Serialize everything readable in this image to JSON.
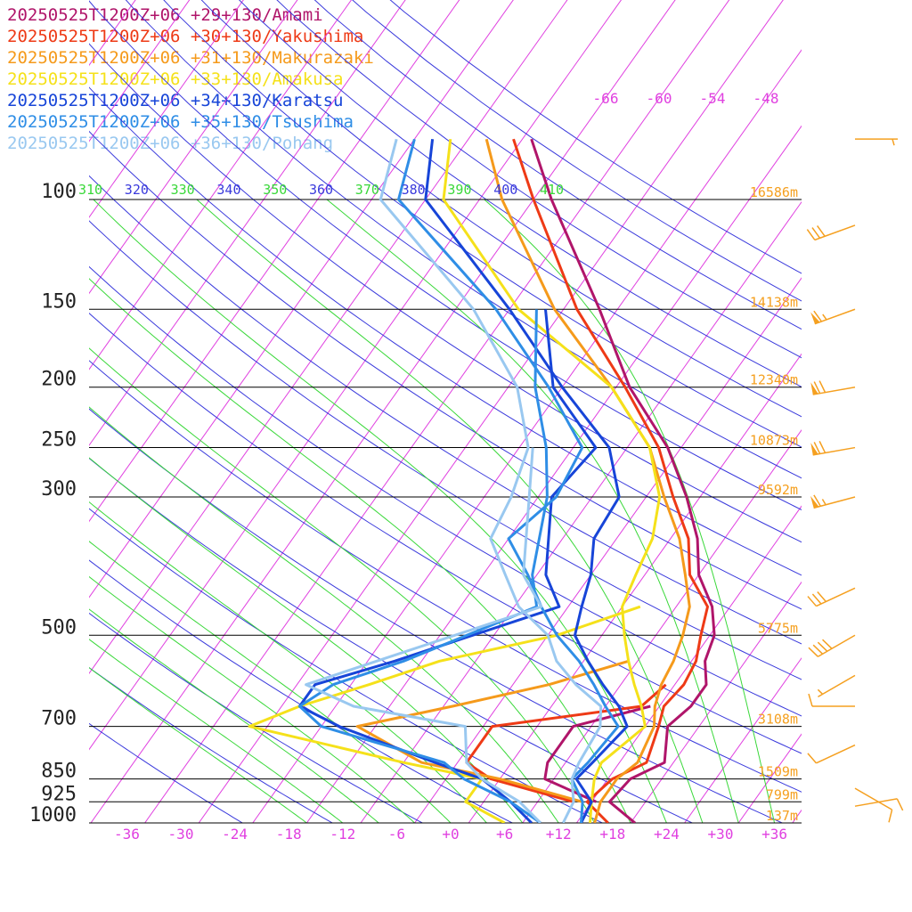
{
  "chart_data": {
    "type": "line",
    "chart_kind": "skew-t log-p sounding",
    "legend": [
      {
        "label": "20250525T1200Z+06 +29+130/Amami",
        "color": "#b0156a"
      },
      {
        "label": "20250525T1200Z+06 +30+130/Yakushima",
        "color": "#ee3a16"
      },
      {
        "label": "20250525T1200Z+06 +31+130/Makurazaki",
        "color": "#f59a1b"
      },
      {
        "label": "20250525T1200Z+06 +33+130/Amakusa",
        "color": "#f5e11a"
      },
      {
        "label": "20250525T1200Z+06 +34+130/Karatsu",
        "color": "#1745d8"
      },
      {
        "label": "20250525T1200Z+06 +35+130/Tsushima",
        "color": "#2f8ee6"
      },
      {
        "label": "20250525T1200Z+06 +36+130/Pohang",
        "color": "#99c8f0"
      }
    ],
    "pressure_levels": [
      {
        "p": 100,
        "label": "100",
        "height": "16586m"
      },
      {
        "p": 150,
        "label": "150",
        "height": "14138m"
      },
      {
        "p": 200,
        "label": "200",
        "height": "12340m"
      },
      {
        "p": 250,
        "label": "250",
        "height": "10873m"
      },
      {
        "p": 300,
        "label": "300",
        "height": "9592m"
      },
      {
        "p": 500,
        "label": "500",
        "height": "5775m"
      },
      {
        "p": 700,
        "label": "700",
        "height": "3108m"
      },
      {
        "p": 850,
        "label": "850",
        "height": "1509m"
      },
      {
        "p": 925,
        "label": "925",
        "height": "799m"
      },
      {
        "p": 1000,
        "label": "1000",
        "height": "137m"
      }
    ],
    "temperature_ticks": [
      "-36",
      "-30",
      "-24",
      "-18",
      "-12",
      "-6",
      "+0",
      "+6",
      "+12",
      "+18",
      "+24",
      "+30",
      "+36"
    ],
    "temperature_tick_values": [
      -36,
      -30,
      -24,
      -18,
      -12,
      -6,
      0,
      6,
      12,
      18,
      24,
      30,
      36
    ],
    "upper_temperature_ticks": [
      "-66",
      "-60",
      "-54",
      "-48"
    ],
    "theta_labels": [
      "310",
      "320",
      "330",
      "340",
      "350",
      "360",
      "370",
      "380",
      "390",
      "400",
      "410"
    ],
    "xlim": [
      -40,
      40
    ],
    "ylim": [
      1000,
      100
    ],
    "series": [
      {
        "name": "20250525T1200Z+06 +29+130/Amami",
        "color": "#b0156a",
        "temperature": [
          [
            1000,
            20.5
          ],
          [
            925,
            16.0
          ],
          [
            850,
            16.5
          ],
          [
            800,
            19.0
          ],
          [
            700,
            16.5
          ],
          [
            650,
            17.5
          ],
          [
            600,
            17.5
          ],
          [
            550,
            15.5
          ],
          [
            500,
            14.5
          ],
          [
            450,
            12.0
          ],
          [
            400,
            8.0
          ],
          [
            350,
            5.0
          ],
          [
            300,
            0.5
          ],
          [
            250,
            -5.5
          ],
          [
            200,
            -14.5
          ],
          [
            150,
            -24.0
          ],
          [
            100,
            -38.0
          ],
          [
            80,
            -45.0
          ]
        ],
        "dewpoint": [
          [
            925,
            14.5
          ],
          [
            850,
            7.0
          ],
          [
            800,
            6.0
          ],
          [
            700,
            6.0
          ],
          [
            650,
            13.0
          ]
        ]
      },
      {
        "name": "20250525T1200Z+06 +30+130/Yakushima",
        "color": "#ee3a16",
        "temperature": [
          [
            1000,
            17.5
          ],
          [
            925,
            13.5
          ],
          [
            850,
            14.5
          ],
          [
            800,
            17.0
          ],
          [
            700,
            15.5
          ],
          [
            650,
            14.5
          ],
          [
            600,
            15.0
          ],
          [
            550,
            14.5
          ],
          [
            500,
            13.0
          ],
          [
            450,
            11.5
          ],
          [
            400,
            7.0
          ],
          [
            350,
            4.0
          ],
          [
            300,
            -1.0
          ],
          [
            250,
            -6.5
          ],
          [
            200,
            -15.0
          ],
          [
            150,
            -26.5
          ],
          [
            100,
            -40.0
          ],
          [
            80,
            -47.0
          ]
        ],
        "dewpoint": [
          [
            925,
            12.0
          ],
          [
            850,
            1.0
          ],
          [
            800,
            -3.0
          ],
          [
            700,
            -3.0
          ],
          [
            650,
            12.0
          ],
          [
            600,
            13.0
          ]
        ]
      },
      {
        "name": "20250525T1200Z+06 +31+130/Makurazaki",
        "color": "#f59a1b",
        "temperature": [
          [
            1000,
            16.0
          ],
          [
            925,
            15.0
          ],
          [
            850,
            15.0
          ],
          [
            800,
            16.0
          ],
          [
            700,
            15.0
          ],
          [
            650,
            13.5
          ],
          [
            600,
            12.5
          ],
          [
            550,
            12.0
          ],
          [
            500,
            11.0
          ],
          [
            450,
            9.5
          ],
          [
            400,
            6.5
          ],
          [
            350,
            3.0
          ],
          [
            300,
            -2.0
          ],
          [
            250,
            -7.5
          ],
          [
            200,
            -16.5
          ],
          [
            150,
            -29.0
          ],
          [
            100,
            -43.5
          ],
          [
            80,
            -50.0
          ]
        ],
        "dewpoint": [
          [
            925,
            13.0
          ],
          [
            850,
            2.0
          ],
          [
            800,
            -8.0
          ],
          [
            700,
            -18.0
          ],
          [
            650,
            -9.0
          ],
          [
            600,
            0.0
          ],
          [
            550,
            7.0
          ]
        ]
      },
      {
        "name": "20250525T1200Z+06 +33+130/Amakusa",
        "color": "#f5e11a",
        "temperature": [
          [
            1000,
            15.5
          ],
          [
            925,
            14.0
          ],
          [
            850,
            12.5
          ],
          [
            800,
            12.0
          ],
          [
            700,
            14.0
          ],
          [
            650,
            12.0
          ],
          [
            600,
            9.5
          ],
          [
            550,
            7.0
          ],
          [
            500,
            4.5
          ],
          [
            450,
            2.0
          ],
          [
            400,
            1.0
          ],
          [
            350,
            0.0
          ],
          [
            300,
            -2.5
          ],
          [
            250,
            -7.5
          ],
          [
            200,
            -16.5
          ],
          [
            150,
            -33.0
          ],
          [
            100,
            -50.0
          ],
          [
            80,
            -54.0
          ]
        ],
        "dewpoint": [
          [
            1000,
            6.0
          ],
          [
            925,
            0.0
          ],
          [
            850,
            0.0
          ],
          [
            800,
            -10.0
          ],
          [
            700,
            -30.0
          ],
          [
            650,
            -26.0
          ],
          [
            600,
            -20.0
          ],
          [
            550,
            -14.0
          ],
          [
            500,
            -3.0
          ],
          [
            450,
            4.0
          ]
        ]
      },
      {
        "name": "20250525T1200Z+06 +34+130/Karatsu",
        "color": "#1745d8",
        "temperature": [
          [
            1000,
            14.5
          ],
          [
            925,
            14.0
          ],
          [
            850,
            10.5
          ],
          [
            800,
            11.0
          ],
          [
            700,
            12.0
          ],
          [
            650,
            9.5
          ],
          [
            600,
            6.0
          ],
          [
            550,
            2.5
          ],
          [
            500,
            -1.0
          ],
          [
            450,
            -2.5
          ],
          [
            400,
            -4.0
          ],
          [
            350,
            -6.5
          ],
          [
            300,
            -7.0
          ],
          [
            250,
            -12.0
          ],
          [
            200,
            -22.0
          ],
          [
            150,
            -34.0
          ],
          [
            100,
            -52.0
          ],
          [
            80,
            -56.0
          ]
        ],
        "dewpoint": [
          [
            1000,
            9.0
          ],
          [
            925,
            5.0
          ],
          [
            850,
            0.0
          ],
          [
            800,
            -6.5
          ],
          [
            700,
            -20.0
          ],
          [
            650,
            -26.0
          ],
          [
            600,
            -26.0
          ],
          [
            550,
            -19.0
          ],
          [
            450,
            -5.0
          ],
          [
            400,
            -9.0
          ],
          [
            300,
            -14.5
          ],
          [
            250,
            -13.5
          ],
          [
            200,
            -23.0
          ],
          [
            150,
            -30.0
          ]
        ]
      },
      {
        "name": "20250525T1200Z+06 +35+130/Tsushima",
        "color": "#2f8ee6",
        "temperature": [
          [
            1000,
            14.5
          ],
          [
            925,
            13.0
          ],
          [
            850,
            10.0
          ],
          [
            800,
            10.5
          ],
          [
            700,
            11.0
          ],
          [
            650,
            8.0
          ],
          [
            600,
            5.0
          ],
          [
            550,
            1.5
          ],
          [
            500,
            -3.0
          ],
          [
            450,
            -7.0
          ],
          [
            400,
            -11.0
          ],
          [
            350,
            -16.0
          ],
          [
            300,
            -14.0
          ],
          [
            250,
            -15.0
          ],
          [
            200,
            -23.5
          ],
          [
            150,
            -35.5
          ],
          [
            100,
            -55.0
          ],
          [
            80,
            -58.0
          ]
        ],
        "dewpoint": [
          [
            1000,
            10.0
          ],
          [
            925,
            5.0
          ],
          [
            850,
            -2.0
          ],
          [
            800,
            -5.5
          ],
          [
            700,
            -22.0
          ],
          [
            650,
            -26.0
          ],
          [
            600,
            -24.0
          ],
          [
            550,
            -18.0
          ],
          [
            450,
            -7.5
          ],
          [
            400,
            -10.5
          ],
          [
            300,
            -15.0
          ],
          [
            250,
            -19.0
          ],
          [
            200,
            -25.0
          ],
          [
            150,
            -31.0
          ]
        ]
      },
      {
        "name": "20250525T1200Z+06 +36+130/Pohang",
        "color": "#99c8f0",
        "temperature": [
          [
            1000,
            12.5
          ],
          [
            925,
            12.0
          ],
          [
            850,
            10.0
          ],
          [
            800,
            9.5
          ],
          [
            700,
            9.0
          ],
          [
            650,
            7.5
          ],
          [
            600,
            3.0
          ],
          [
            550,
            -1.0
          ],
          [
            500,
            -4.0
          ],
          [
            450,
            -9.5
          ],
          [
            400,
            -13.5
          ],
          [
            350,
            -18.0
          ],
          [
            300,
            -19.0
          ],
          [
            250,
            -21.0
          ],
          [
            200,
            -27.0
          ],
          [
            150,
            -38.0
          ],
          [
            100,
            -57.0
          ],
          [
            80,
            -60.0
          ]
        ],
        "dewpoint": [
          [
            1000,
            10.0
          ],
          [
            925,
            6.0
          ],
          [
            850,
            0.0
          ],
          [
            800,
            -3.0
          ],
          [
            700,
            -6.0
          ],
          [
            650,
            -20.0
          ],
          [
            600,
            -27.0
          ],
          [
            550,
            -21.0
          ],
          [
            450,
            -7.0
          ],
          [
            400,
            -11.5
          ],
          [
            300,
            -17.0
          ],
          [
            250,
            -20.5
          ]
        ]
      }
    ],
    "wind_barbs": [
      {
        "p": 80,
        "speed_kt": 5,
        "dir_deg": 90
      },
      {
        "p": 110,
        "speed_kt": 30,
        "dir_deg": 250
      },
      {
        "p": 150,
        "speed_kt": 65,
        "dir_deg": 250
      },
      {
        "p": 200,
        "speed_kt": 70,
        "dir_deg": 260
      },
      {
        "p": 250,
        "speed_kt": 70,
        "dir_deg": 260
      },
      {
        "p": 300,
        "speed_kt": 65,
        "dir_deg": 255
      },
      {
        "p": 420,
        "speed_kt": 30,
        "dir_deg": 245
      },
      {
        "p": 500,
        "speed_kt": 40,
        "dir_deg": 240
      },
      {
        "p": 580,
        "speed_kt": 5,
        "dir_deg": 240
      },
      {
        "p": 650,
        "speed_kt": 10,
        "dir_deg": 270
      },
      {
        "p": 750,
        "speed_kt": 10,
        "dir_deg": 245
      },
      {
        "p": 880,
        "speed_kt": 10,
        "dir_deg": 120
      },
      {
        "p": 940,
        "speed_kt": 10,
        "dir_deg": 80
      }
    ],
    "colors": {
      "isotherm": "#e040e0",
      "dry_adiabat": "#3a3adc",
      "moist_adiabat": "#3ad83a",
      "height_label": "#f5a020",
      "wind_barb": "#f5a020",
      "axis_label": "#222222",
      "isobar": "#000000"
    }
  }
}
